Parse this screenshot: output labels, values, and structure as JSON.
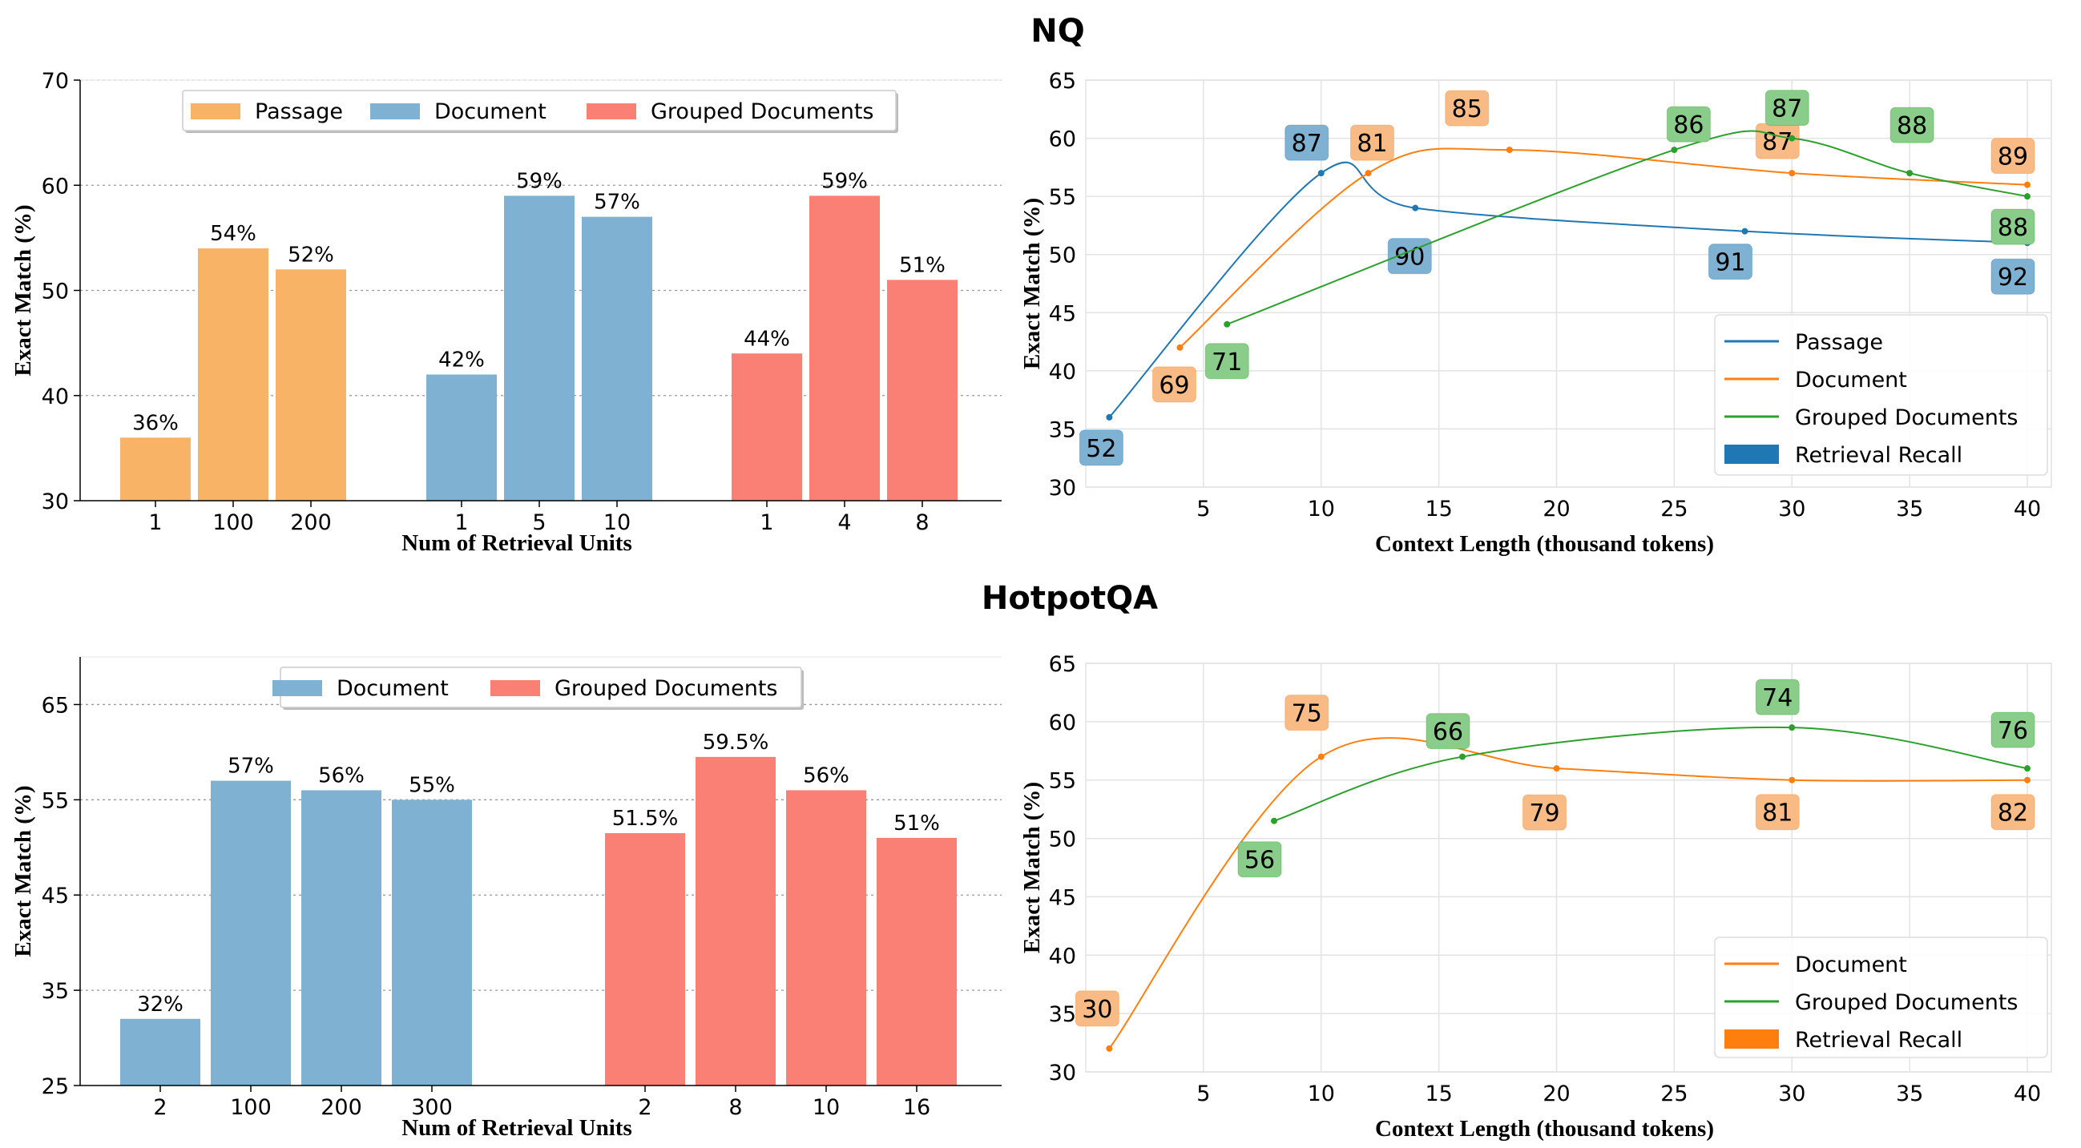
{
  "figure": {
    "section_titles": [
      "NQ",
      "HotpotQA"
    ]
  },
  "chart_data": [
    {
      "id": "nq-bar",
      "type": "bar",
      "xlabel": "Num of Retrieval Units",
      "ylabel": "Exact Match (%)",
      "ylim": [
        30,
        70
      ],
      "yticks": [
        30,
        40,
        50,
        60,
        70
      ],
      "grid": "horizontal dotted",
      "legend_position": "top-center",
      "groups": [
        {
          "name": "Passage",
          "color": "#f9b366",
          "categories": [
            "1",
            "100",
            "200"
          ],
          "values": [
            36,
            54,
            52
          ],
          "labels": [
            "36%",
            "54%",
            "52%"
          ]
        },
        {
          "name": "Document",
          "color": "#7fb1d3",
          "categories": [
            "1",
            "5",
            "10"
          ],
          "values": [
            42,
            59,
            57
          ],
          "labels": [
            "42%",
            "59%",
            "57%"
          ]
        },
        {
          "name": "Grouped Documents",
          "color": "#fa7f74",
          "categories": [
            "1",
            "4",
            "8"
          ],
          "values": [
            44,
            59,
            51
          ],
          "labels": [
            "44%",
            "59%",
            "51%"
          ]
        }
      ]
    },
    {
      "id": "nq-line",
      "type": "line",
      "xlabel": "Context Length (thousand tokens)",
      "ylabel": "Exact Match (%)",
      "xlim": [
        0,
        40
      ],
      "ylim": [
        30,
        65
      ],
      "xticks": [
        5,
        10,
        15,
        20,
        25,
        30,
        35,
        40
      ],
      "yticks": [
        30,
        35,
        40,
        45,
        50,
        55,
        60,
        65
      ],
      "grid": "both",
      "legend_position": "lower-right",
      "legend": [
        "Passage",
        "Document",
        "Grouped Documents",
        "Retrieval Recall"
      ],
      "legend_patch_color": "#1f77b4",
      "series": [
        {
          "name": "Passage",
          "color": "#1f77b4",
          "box_color": "#7fb1d3",
          "x": [
            1,
            10,
            14,
            28,
            40
          ],
          "y": [
            36,
            57,
            54,
            52,
            51
          ],
          "recall": [
            "52",
            "87",
            "90",
            "91",
            "92"
          ]
        },
        {
          "name": "Document",
          "color": "#ff7f0e",
          "box_color": "#f9bb86",
          "x": [
            4,
            12,
            18,
            30,
            40
          ],
          "y": [
            42,
            57,
            59,
            57,
            56
          ],
          "recall": [
            "69",
            "81",
            "85",
            "87",
            "89"
          ]
        },
        {
          "name": "Grouped Documents",
          "color": "#2ca02c",
          "box_color": "#8acc8a",
          "x": [
            6,
            25,
            30,
            35,
            40
          ],
          "y": [
            44,
            59,
            60,
            57,
            55
          ],
          "recall": [
            "71",
            "86",
            "87",
            "88",
            "88"
          ]
        }
      ]
    },
    {
      "id": "hotpot-bar",
      "type": "bar",
      "xlabel": "Num of Retrieval Units",
      "ylabel": "Exact Match (%)",
      "ylim": [
        25,
        70
      ],
      "yticks": [
        25,
        35,
        45,
        55,
        65
      ],
      "grid": "horizontal dotted",
      "legend_position": "top-center",
      "groups": [
        {
          "name": "Document",
          "color": "#7fb1d3",
          "categories": [
            "2",
            "100",
            "200",
            "300"
          ],
          "values": [
            32,
            57,
            56,
            55
          ],
          "labels": [
            "32%",
            "57%",
            "56%",
            "55%"
          ]
        },
        {
          "name": "Grouped Documents",
          "color": "#fa7f74",
          "categories": [
            "2",
            "8",
            "10",
            "16"
          ],
          "values": [
            51.5,
            59.5,
            56,
            51
          ],
          "labels": [
            "51.5%",
            "59.5%",
            "56%",
            "51%"
          ]
        }
      ]
    },
    {
      "id": "hotpot-line",
      "type": "line",
      "xlabel": "Context Length (thousand tokens)",
      "ylabel": "Exact Match (%)",
      "xlim": [
        0,
        40
      ],
      "ylim": [
        30,
        65
      ],
      "xticks": [
        5,
        10,
        15,
        20,
        25,
        30,
        35,
        40
      ],
      "yticks": [
        30,
        35,
        40,
        45,
        50,
        55,
        60,
        65
      ],
      "grid": "both",
      "legend_position": "lower-right",
      "legend": [
        "Document",
        "Grouped Documents",
        "Retrieval Recall"
      ],
      "legend_patch_color": "#ff7f0e",
      "series": [
        {
          "name": "Document",
          "color": "#ff7f0e",
          "box_color": "#f9bb86",
          "x": [
            1,
            10,
            20,
            30,
            40
          ],
          "y": [
            32,
            57,
            56,
            55,
            55
          ],
          "recall": [
            "30",
            "75",
            "79",
            "81",
            "82"
          ]
        },
        {
          "name": "Grouped Documents",
          "color": "#2ca02c",
          "box_color": "#8acc8a",
          "x": [
            8,
            16,
            30,
            40
          ],
          "y": [
            51.5,
            57,
            59.5,
            56
          ],
          "recall": [
            "56",
            "66",
            "74",
            "76"
          ]
        }
      ]
    }
  ]
}
